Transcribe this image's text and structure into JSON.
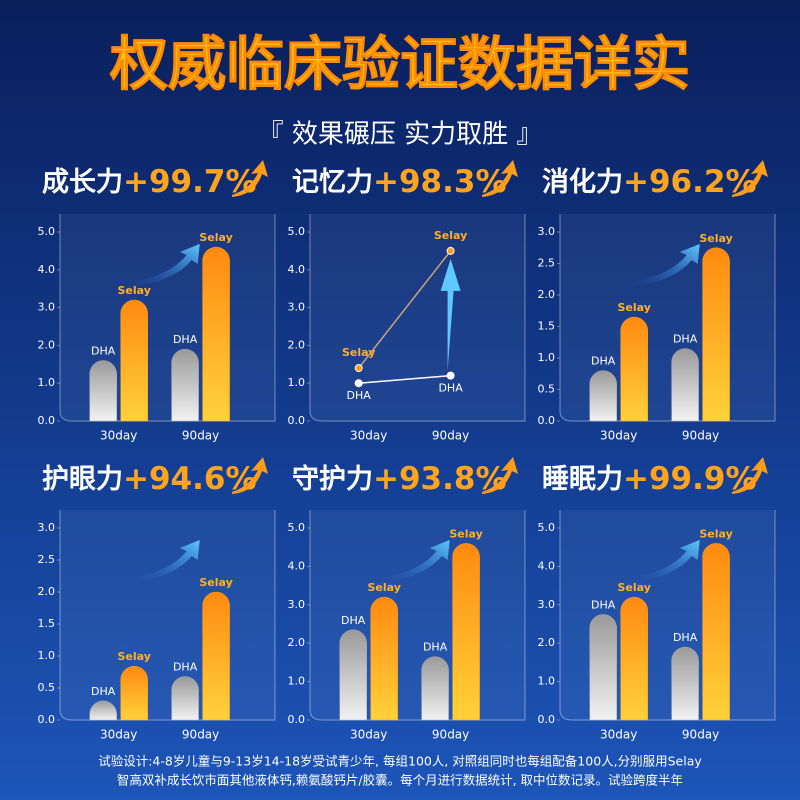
{
  "header": {
    "title": "权威临床验证数据详实",
    "subtitle": "『 效果碾压  实力取胜 』"
  },
  "chart_data": [
    {
      "type": "bar",
      "title": "成长力",
      "stat": {
        "value": 99.7,
        "label": "+99.7%"
      },
      "categories": [
        "30day",
        "90day"
      ],
      "series": [
        {
          "name": "DHA",
          "color": "#a9a9a9",
          "values": [
            1.6,
            1.9
          ]
        },
        {
          "name": "Selay",
          "color": "#ff9c1a",
          "values": [
            3.2,
            4.6
          ]
        }
      ],
      "ylim": [
        0,
        5
      ],
      "yticks": [
        {
          "value": 0,
          "label": "0.0"
        },
        {
          "value": 1,
          "label": "1.0"
        },
        {
          "value": 2,
          "label": "2.0"
        },
        {
          "value": 3,
          "label": "3.0"
        },
        {
          "value": 4,
          "label": "4.0"
        },
        {
          "value": 5,
          "label": "5.0"
        }
      ]
    },
    {
      "type": "line",
      "title": "记忆力",
      "stat": {
        "value": 98.3,
        "label": "+98.3%"
      },
      "categories": [
        "30day",
        "90day"
      ],
      "series": [
        {
          "name": "DHA",
          "color": "#ffffff",
          "values": [
            1.0,
            1.2
          ]
        },
        {
          "name": "Selay",
          "color": "#c8a27a",
          "values": [
            1.4,
            4.5
          ]
        }
      ],
      "ylim": [
        0,
        5
      ],
      "yticks": [
        {
          "value": 0,
          "label": "0.0"
        },
        {
          "value": 1,
          "label": "1.0"
        },
        {
          "value": 2,
          "label": "2.0"
        },
        {
          "value": 3,
          "label": "3.0"
        },
        {
          "value": 4,
          "label": "4.0"
        },
        {
          "value": 5,
          "label": "5.0"
        }
      ]
    },
    {
      "type": "bar",
      "title": "消化力",
      "stat": {
        "value": 96.2,
        "label": "+96.2%"
      },
      "categories": [
        "30day",
        "90day"
      ],
      "series": [
        {
          "name": "DHA",
          "color": "#a9a9a9",
          "values": [
            0.8,
            1.15
          ]
        },
        {
          "name": "Selay",
          "color": "#ff9c1a",
          "values": [
            1.65,
            2.75
          ]
        }
      ],
      "ylim": [
        0,
        3
      ],
      "yticks": [
        {
          "value": 0,
          "label": "0.0"
        },
        {
          "value": 0.5,
          "label": "0.5"
        },
        {
          "value": 1,
          "label": "1.0"
        },
        {
          "value": 1.5,
          "label": "1.5"
        },
        {
          "value": 2,
          "label": "2.0"
        },
        {
          "value": 2.5,
          "label": "2.5"
        },
        {
          "value": 3,
          "label": "3.0"
        }
      ]
    },
    {
      "type": "bar",
      "title": "护眼力",
      "stat": {
        "value": 94.6,
        "label": "+94.6%"
      },
      "categories": [
        "30day",
        "90day"
      ],
      "series": [
        {
          "name": "DHA",
          "color": "#a9a9a9",
          "values": [
            0.3,
            0.68
          ]
        },
        {
          "name": "Selay",
          "color": "#ff9c1a",
          "values": [
            0.84,
            2.0
          ]
        }
      ],
      "ylim": [
        0,
        3
      ],
      "yticks": [
        {
          "value": 0,
          "label": "0.0"
        },
        {
          "value": 0.5,
          "label": "0.5"
        },
        {
          "value": 1,
          "label": "1.0"
        },
        {
          "value": 1.5,
          "label": "1.5"
        },
        {
          "value": 2,
          "label": "2.0"
        },
        {
          "value": 2.5,
          "label": "2.5"
        },
        {
          "value": 3,
          "label": "3.0"
        }
      ]
    },
    {
      "type": "bar",
      "title": "守护力",
      "stat": {
        "value": 93.8,
        "label": "+93.8%"
      },
      "categories": [
        "30day",
        "90day"
      ],
      "series": [
        {
          "name": "DHA",
          "color": "#a9a9a9",
          "values": [
            2.35,
            1.65
          ]
        },
        {
          "name": "Selay",
          "color": "#ff9c1a",
          "values": [
            3.2,
            4.6
          ]
        }
      ],
      "ylim": [
        0,
        5
      ],
      "yticks": [
        {
          "value": 0,
          "label": "0.0"
        },
        {
          "value": 1,
          "label": "1.0"
        },
        {
          "value": 2,
          "label": "2.0"
        },
        {
          "value": 3,
          "label": "3.0"
        },
        {
          "value": 4,
          "label": "4.0"
        },
        {
          "value": 5,
          "label": "5.0"
        }
      ]
    },
    {
      "type": "bar",
      "title": "睡眠力",
      "stat": {
        "value": 99.9,
        "label": "+99.9%"
      },
      "categories": [
        "30day",
        "90day"
      ],
      "series": [
        {
          "name": "DHA",
          "color": "#a9a9a9",
          "values": [
            2.75,
            1.9
          ]
        },
        {
          "name": "Selay",
          "color": "#ff9c1a",
          "values": [
            3.2,
            4.6
          ]
        }
      ],
      "ylim": [
        0,
        5
      ],
      "yticks": [
        {
          "value": 0,
          "label": "0.0"
        },
        {
          "value": 1,
          "label": "1.0"
        },
        {
          "value": 2,
          "label": "2.0"
        },
        {
          "value": 3,
          "label": "3.0"
        },
        {
          "value": 4,
          "label": "4.0"
        },
        {
          "value": 5,
          "label": "5.0"
        }
      ]
    }
  ],
  "footnote": [
    "试验设计:4-8岁儿童与9-13岁14-18岁受试青少年, 每组100人, 对照组同时也每组配备100人,分别服用Selay",
    "智高双补成长饮市面其他液体钙,赖氨酸钙片/胶囊。每个月进行数据统计, 取中位数记录。试验跨度半年"
  ]
}
